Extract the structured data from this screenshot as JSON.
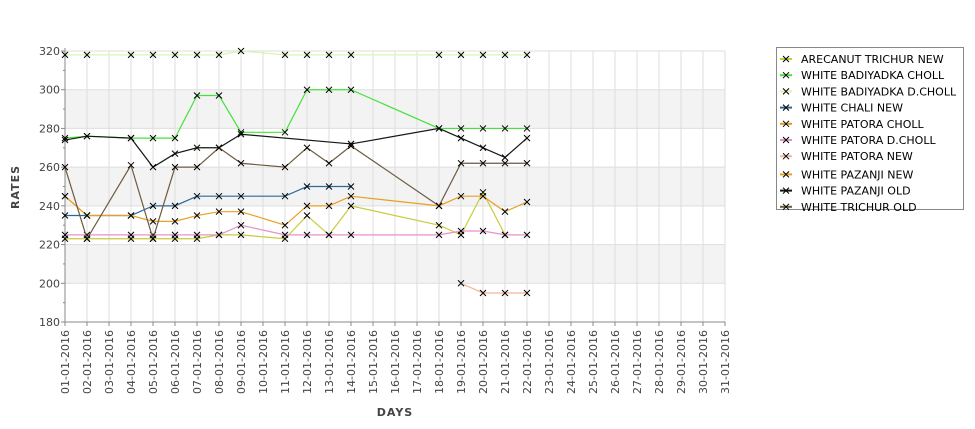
{
  "chart_data": {
    "type": "line",
    "title": "",
    "xlabel": "DAYS",
    "ylabel": "RATES",
    "ylim": [
      180,
      320
    ],
    "yticks": [
      180,
      200,
      220,
      240,
      260,
      280,
      300,
      320
    ],
    "grid": true,
    "legend_position": "right",
    "categories": [
      "01-01-2016",
      "02-01-2016",
      "03-01-2016",
      "04-01-2016",
      "05-01-2016",
      "06-01-2016",
      "07-01-2016",
      "08-01-2016",
      "09-01-2016",
      "10-01-2016",
      "11-01-2016",
      "12-01-2016",
      "13-01-2016",
      "14-01-2016",
      "15-01-2016",
      "16-01-2016",
      "17-01-2016",
      "18-01-2016",
      "19-01-2016",
      "20-01-2016",
      "21-01-2016",
      "22-01-2016",
      "23-01-2016",
      "24-01-2016",
      "25-01-2016",
      "26-01-2016",
      "27-01-2016",
      "28-01-2016",
      "29-01-2016",
      "30-01-2016",
      "31-01-2016"
    ],
    "series": [
      {
        "name": "ARECANUT TRICHUR NEW",
        "color": "#c8cc3a",
        "points": [
          [
            1,
            223
          ],
          [
            2,
            223
          ],
          [
            4,
            223
          ],
          [
            5,
            223
          ],
          [
            6,
            223
          ],
          [
            7,
            223
          ],
          [
            8,
            225
          ],
          [
            9,
            225
          ],
          [
            11,
            223
          ],
          [
            12,
            235
          ],
          [
            13,
            225
          ],
          [
            14,
            240
          ],
          [
            18,
            230
          ],
          [
            19,
            225
          ],
          [
            20,
            247
          ],
          [
            21,
            225
          ]
        ]
      },
      {
        "name": "WHITE BADIYADKA CHOLL",
        "color": "#44e23a",
        "points": [
          [
            1,
            275
          ],
          [
            2,
            276
          ],
          [
            4,
            275
          ],
          [
            5,
            275
          ],
          [
            6,
            275
          ],
          [
            7,
            297
          ],
          [
            8,
            297
          ],
          [
            9,
            278
          ],
          [
            11,
            278
          ],
          [
            12,
            300
          ],
          [
            13,
            300
          ],
          [
            14,
            300
          ],
          [
            18,
            280
          ],
          [
            19,
            280
          ],
          [
            20,
            280
          ],
          [
            21,
            280
          ],
          [
            22,
            280
          ]
        ]
      },
      {
        "name": "WHITE BADIYADKA D.CHOLL",
        "color": "#d8f5b0",
        "points": [
          [
            1,
            318
          ],
          [
            2,
            318
          ],
          [
            4,
            318
          ],
          [
            5,
            318
          ],
          [
            6,
            318
          ],
          [
            7,
            318
          ],
          [
            8,
            318
          ],
          [
            9,
            320
          ],
          [
            11,
            318
          ],
          [
            12,
            318
          ],
          [
            13,
            318
          ],
          [
            14,
            318
          ],
          [
            18,
            318
          ],
          [
            19,
            318
          ],
          [
            20,
            318
          ],
          [
            21,
            318
          ],
          [
            22,
            318
          ]
        ]
      },
      {
        "name": "WHITE CHALI NEW",
        "color": "#2a6a9a",
        "points": [
          [
            1,
            235
          ],
          [
            2,
            235
          ],
          [
            4,
            235
          ],
          [
            5,
            240
          ],
          [
            6,
            240
          ],
          [
            7,
            245
          ],
          [
            8,
            245
          ],
          [
            9,
            245
          ],
          [
            11,
            245
          ],
          [
            12,
            250
          ],
          [
            13,
            250
          ],
          [
            14,
            250
          ]
        ]
      },
      {
        "name": "WHITE PATORA CHOLL",
        "color": "#e09a1a",
        "points": [
          [
            1,
            245
          ],
          [
            2,
            235
          ]
        ]
      },
      {
        "name": "WHITE PATORA D.CHOLL",
        "color": "#e890c8",
        "points": [
          [
            1,
            225
          ],
          [
            2,
            225
          ],
          [
            4,
            225
          ],
          [
            5,
            225
          ],
          [
            6,
            225
          ],
          [
            7,
            225
          ],
          [
            8,
            225
          ],
          [
            9,
            230
          ],
          [
            11,
            225
          ],
          [
            12,
            225
          ],
          [
            13,
            225
          ],
          [
            14,
            225
          ],
          [
            18,
            225
          ],
          [
            19,
            227
          ],
          [
            20,
            227
          ],
          [
            21,
            225
          ],
          [
            22,
            225
          ]
        ]
      },
      {
        "name": "WHITE PATORA NEW",
        "color": "#f4b898",
        "points": [
          [
            19,
            200
          ],
          [
            20,
            195
          ],
          [
            21,
            195
          ],
          [
            22,
            195
          ]
        ]
      },
      {
        "name": "WHITE PAZANJI NEW",
        "color": "#e8a020",
        "points": [
          [
            1,
            245
          ],
          [
            2,
            235
          ],
          [
            4,
            235
          ],
          [
            5,
            232
          ],
          [
            6,
            232
          ],
          [
            7,
            235
          ],
          [
            8,
            237
          ],
          [
            9,
            237
          ],
          [
            11,
            230
          ],
          [
            12,
            240
          ],
          [
            13,
            240
          ],
          [
            14,
            245
          ],
          [
            18,
            240
          ],
          [
            19,
            245
          ],
          [
            20,
            245
          ],
          [
            21,
            237
          ],
          [
            22,
            242
          ]
        ]
      },
      {
        "name": "WHITE PAZANJI OLD",
        "color": "#111a10",
        "points": [
          [
            1,
            274
          ],
          [
            2,
            276
          ],
          [
            4,
            275
          ],
          [
            5,
            260
          ],
          [
            6,
            267
          ],
          [
            7,
            270
          ],
          [
            8,
            270
          ],
          [
            9,
            277
          ],
          [
            14,
            272
          ],
          [
            18,
            280
          ],
          [
            19,
            275
          ],
          [
            20,
            270
          ],
          [
            21,
            265
          ],
          [
            22,
            275
          ]
        ]
      },
      {
        "name": "WHITE TRICHUR OLD",
        "color": "#6e5a40",
        "points": [
          [
            1,
            260
          ],
          [
            2,
            223
          ],
          [
            4,
            261
          ],
          [
            5,
            223
          ],
          [
            6,
            260
          ],
          [
            7,
            260
          ],
          [
            8,
            270
          ],
          [
            9,
            262
          ],
          [
            11,
            260
          ],
          [
            12,
            270
          ],
          [
            13,
            262
          ],
          [
            14,
            271
          ],
          [
            18,
            240
          ],
          [
            19,
            262
          ],
          [
            20,
            262
          ],
          [
            21,
            262
          ],
          [
            22,
            262
          ]
        ]
      }
    ]
  }
}
